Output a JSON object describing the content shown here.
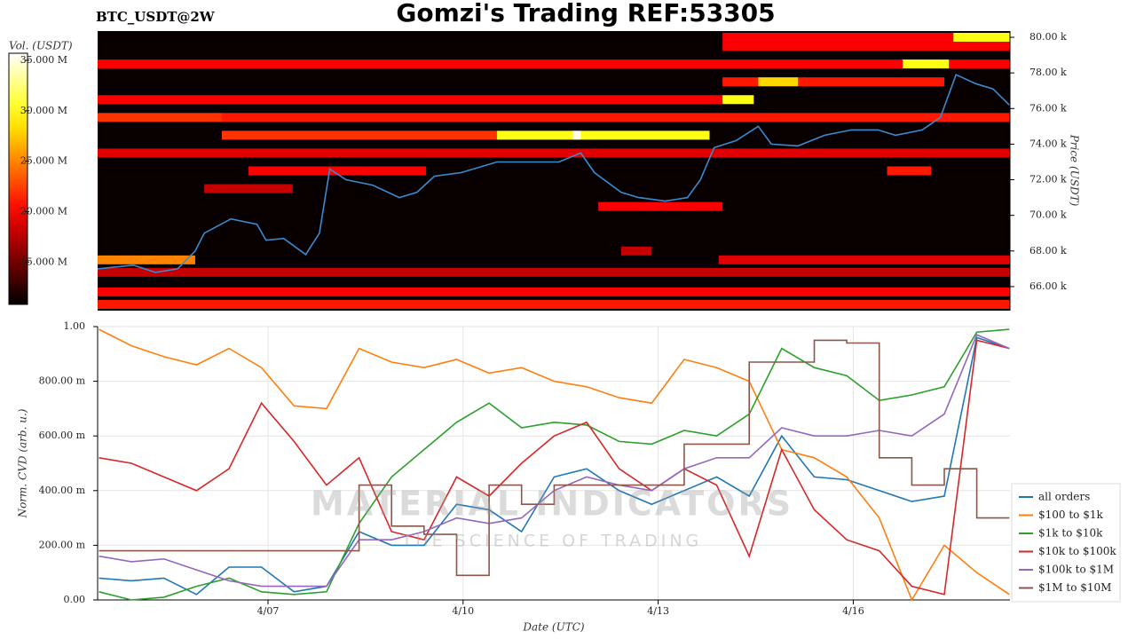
{
  "title": "Gomzi's Trading REF:53305",
  "chart_data": [
    {
      "type": "heatmap",
      "subtitle": "BTC_USDT@2W",
      "ylabel": "Price (USDT)",
      "xlim": [
        4.38,
        18.41
      ],
      "ylim": [
        64650,
        80350
      ],
      "yticks": [
        {
          "value": 66000,
          "label": "66.00 k"
        },
        {
          "value": 68000,
          "label": "68.00 k"
        },
        {
          "value": 70000,
          "label": "70.00 k"
        },
        {
          "value": 72000,
          "label": "72.00 k"
        },
        {
          "value": 74000,
          "label": "74.00 k"
        },
        {
          "value": 76000,
          "label": "76.00 k"
        },
        {
          "value": 78000,
          "label": "78.00 k"
        },
        {
          "value": 80000,
          "label": "80.00 k"
        }
      ],
      "colormap": "hot",
      "colorbar": {
        "label": "Vol. (USDT)",
        "clim": [
          10800000,
          35700000
        ],
        "ticks": [
          {
            "value": 15000000,
            "label": "15.000 M"
          },
          {
            "value": 20000000,
            "label": "20.000 M"
          },
          {
            "value": 25000000,
            "label": "25.000 M"
          },
          {
            "value": 30000000,
            "label": "30.000 M"
          },
          {
            "value": 35000000,
            "label": "35.000 M"
          }
        ]
      },
      "bands": [
        {
          "price": 80000,
          "x": [
            13.99,
            17.54
          ],
          "volume": 20000000
        },
        {
          "price": 80000,
          "x": [
            17.54,
            18.41
          ],
          "volume": 30000000
        },
        {
          "price": 79500,
          "x": [
            13.99,
            18.41
          ],
          "volume": 20000000
        },
        {
          "price": 78500,
          "x": [
            4.38,
            18.41
          ],
          "volume": 20000000
        },
        {
          "price": 78500,
          "x": [
            16.76,
            17.47
          ],
          "volume": 30000000
        },
        {
          "price": 77500,
          "x": [
            13.99,
            17.4
          ],
          "volume": 21000000
        },
        {
          "price": 77500,
          "x": [
            14.54,
            15.15
          ],
          "volume": 28000000
        },
        {
          "price": 76500,
          "x": [
            4.38,
            13.99
          ],
          "volume": 20000000
        },
        {
          "price": 76500,
          "x": [
            13.99,
            14.47
          ],
          "volume": 30000000
        },
        {
          "price": 75500,
          "x": [
            4.38,
            6.29
          ],
          "volume": 22000000
        },
        {
          "price": 75500,
          "x": [
            6.29,
            18.41
          ],
          "volume": 21000000
        },
        {
          "price": 74500,
          "x": [
            6.29,
            10.52
          ],
          "volume": 22000000
        },
        {
          "price": 74500,
          "x": [
            10.52,
            13.79
          ],
          "volume": 30000000
        },
        {
          "price": 74500,
          "x": [
            11.68,
            11.81
          ],
          "volume": 35000000
        },
        {
          "price": 73500,
          "x": [
            4.38,
            18.41
          ],
          "volume": 19000000
        },
        {
          "price": 72500,
          "x": [
            6.7,
            9.43
          ],
          "volume": 20000000
        },
        {
          "price": 72500,
          "x": [
            16.52,
            17.2
          ],
          "volume": 21000000
        },
        {
          "price": 71500,
          "x": [
            6.02,
            7.38
          ],
          "volume": 18000000
        },
        {
          "price": 70500,
          "x": [
            12.08,
            13.99
          ],
          "volume": 20000000
        },
        {
          "price": 68000,
          "x": [
            12.43,
            12.9
          ],
          "volume": 18000000
        },
        {
          "price": 67500,
          "x": [
            13.93,
            18.41
          ],
          "volume": 19000000
        },
        {
          "price": 67500,
          "x": [
            4.38,
            5.88
          ],
          "volume": 25000000
        },
        {
          "price": 66800,
          "x": [
            4.38,
            18.41
          ],
          "volume": 18000000
        },
        {
          "price": 65700,
          "x": [
            4.38,
            18.41
          ],
          "volume": 20000000
        },
        {
          "price": 65000,
          "x": [
            4.38,
            18.41
          ],
          "volume": 21000000
        }
      ],
      "line": {
        "color": "#3a8ad0",
        "x": [
          4.38,
          4.93,
          5.27,
          5.61,
          5.88,
          6.02,
          6.43,
          6.83,
          6.97,
          7.24,
          7.58,
          7.79,
          7.95,
          8.2,
          8.61,
          9.02,
          9.29,
          9.56,
          9.97,
          10.52,
          11.06,
          11.47,
          11.81,
          12.02,
          12.43,
          12.7,
          13.11,
          13.45,
          13.65,
          13.86,
          14.2,
          14.54,
          14.74,
          15.15,
          15.56,
          15.97,
          16.38,
          16.65,
          17.06,
          17.34,
          17.58,
          17.88,
          18.15,
          18.4
        ],
        "values": [
          67000,
          67200,
          66800,
          67000,
          68000,
          69000,
          69800,
          69500,
          68600,
          68700,
          67800,
          69000,
          72600,
          72000,
          71700,
          71000,
          71300,
          72200,
          72400,
          73000,
          73000,
          73000,
          73500,
          72400,
          71300,
          71000,
          70800,
          71000,
          72000,
          73800,
          74200,
          75000,
          74000,
          73900,
          74500,
          74800,
          74800,
          74500,
          74800,
          75500,
          77900,
          77400,
          77100,
          76200
        ]
      }
    },
    {
      "type": "line",
      "xlabel": "Date (UTC)",
      "ylabel": "Norm. CVD (arb. u.)",
      "xlim": [
        4.38,
        18.41
      ],
      "xticks": [
        {
          "value": 7,
          "label": "4/07"
        },
        {
          "value": 10,
          "label": "4/10"
        },
        {
          "value": 13,
          "label": "4/13"
        },
        {
          "value": 16,
          "label": "4/16"
        }
      ],
      "ylim": [
        0,
        1
      ],
      "yticks": [
        {
          "value": 0,
          "label": "0.00"
        },
        {
          "value": 0.2,
          "label": "200.00 m"
        },
        {
          "value": 0.4,
          "label": "400.00 m"
        },
        {
          "value": 0.6,
          "label": "600.00 m"
        },
        {
          "value": 0.8,
          "label": "800.00 m"
        },
        {
          "value": 1,
          "label": "1.00"
        }
      ],
      "grid": true,
      "legend": "lower right",
      "watermark": {
        "title": "MATERIAL INDICATORS",
        "subtitle": "THE SCIENCE OF TRADING"
      },
      "x": [
        4.4,
        4.9,
        5.4,
        5.9,
        6.4,
        6.9,
        7.4,
        7.9,
        8.4,
        8.9,
        9.4,
        9.9,
        10.4,
        10.9,
        11.4,
        11.9,
        12.4,
        12.9,
        13.4,
        13.9,
        14.4,
        14.9,
        15.4,
        15.9,
        16.4,
        16.9,
        17.4,
        17.9,
        18.4
      ],
      "series": [
        {
          "name": "all orders",
          "color": "#1f77b4",
          "values": [
            0.08,
            0.07,
            0.08,
            0.02,
            0.12,
            0.12,
            0.03,
            0.05,
            0.25,
            0.2,
            0.2,
            0.35,
            0.33,
            0.25,
            0.45,
            0.48,
            0.4,
            0.35,
            0.4,
            0.45,
            0.38,
            0.6,
            0.45,
            0.44,
            0.4,
            0.36,
            0.38,
            0.96,
            0.92
          ]
        },
        {
          "name": "$100 to $1k",
          "color": "#ff7f0e",
          "values": [
            0.99,
            0.93,
            0.89,
            0.86,
            0.92,
            0.85,
            0.71,
            0.7,
            0.92,
            0.87,
            0.85,
            0.88,
            0.83,
            0.85,
            0.8,
            0.78,
            0.74,
            0.72,
            0.88,
            0.85,
            0.8,
            0.55,
            0.52,
            0.45,
            0.3,
            0.0,
            0.2,
            0.1,
            0.02
          ]
        },
        {
          "name": "$1k to $10k",
          "color": "#2ca02c",
          "values": [
            0.03,
            0.0,
            0.01,
            0.05,
            0.08,
            0.03,
            0.02,
            0.03,
            0.28,
            0.45,
            0.55,
            0.65,
            0.72,
            0.63,
            0.65,
            0.64,
            0.58,
            0.57,
            0.62,
            0.6,
            0.68,
            0.92,
            0.85,
            0.82,
            0.73,
            0.75,
            0.78,
            0.98,
            0.99
          ]
        },
        {
          "name": "$10k to $100k",
          "color": "#d62728",
          "values": [
            0.52,
            0.5,
            0.45,
            0.4,
            0.48,
            0.72,
            0.58,
            0.42,
            0.52,
            0.25,
            0.22,
            0.45,
            0.38,
            0.5,
            0.6,
            0.65,
            0.48,
            0.4,
            0.48,
            0.42,
            0.16,
            0.55,
            0.33,
            0.22,
            0.18,
            0.05,
            0.02,
            0.95,
            0.92
          ]
        },
        {
          "name": "$100k to $1M",
          "color": "#9467bd",
          "values": [
            0.16,
            0.14,
            0.15,
            0.11,
            0.07,
            0.05,
            0.05,
            0.05,
            0.22,
            0.22,
            0.25,
            0.3,
            0.28,
            0.3,
            0.4,
            0.45,
            0.42,
            0.4,
            0.48,
            0.52,
            0.52,
            0.63,
            0.6,
            0.6,
            0.62,
            0.6,
            0.68,
            0.97,
            0.92
          ]
        },
        {
          "name": "$1M to $10M",
          "color": "#8c564b",
          "step": true,
          "values": [
            0.18,
            0.18,
            0.18,
            0.18,
            0.18,
            0.18,
            0.18,
            0.18,
            0.42,
            0.27,
            0.24,
            0.09,
            0.42,
            0.35,
            0.42,
            0.42,
            0.42,
            0.42,
            0.57,
            0.57,
            0.87,
            0.87,
            0.95,
            0.94,
            0.52,
            0.42,
            0.48,
            0.3,
            0.3
          ]
        }
      ]
    }
  ]
}
